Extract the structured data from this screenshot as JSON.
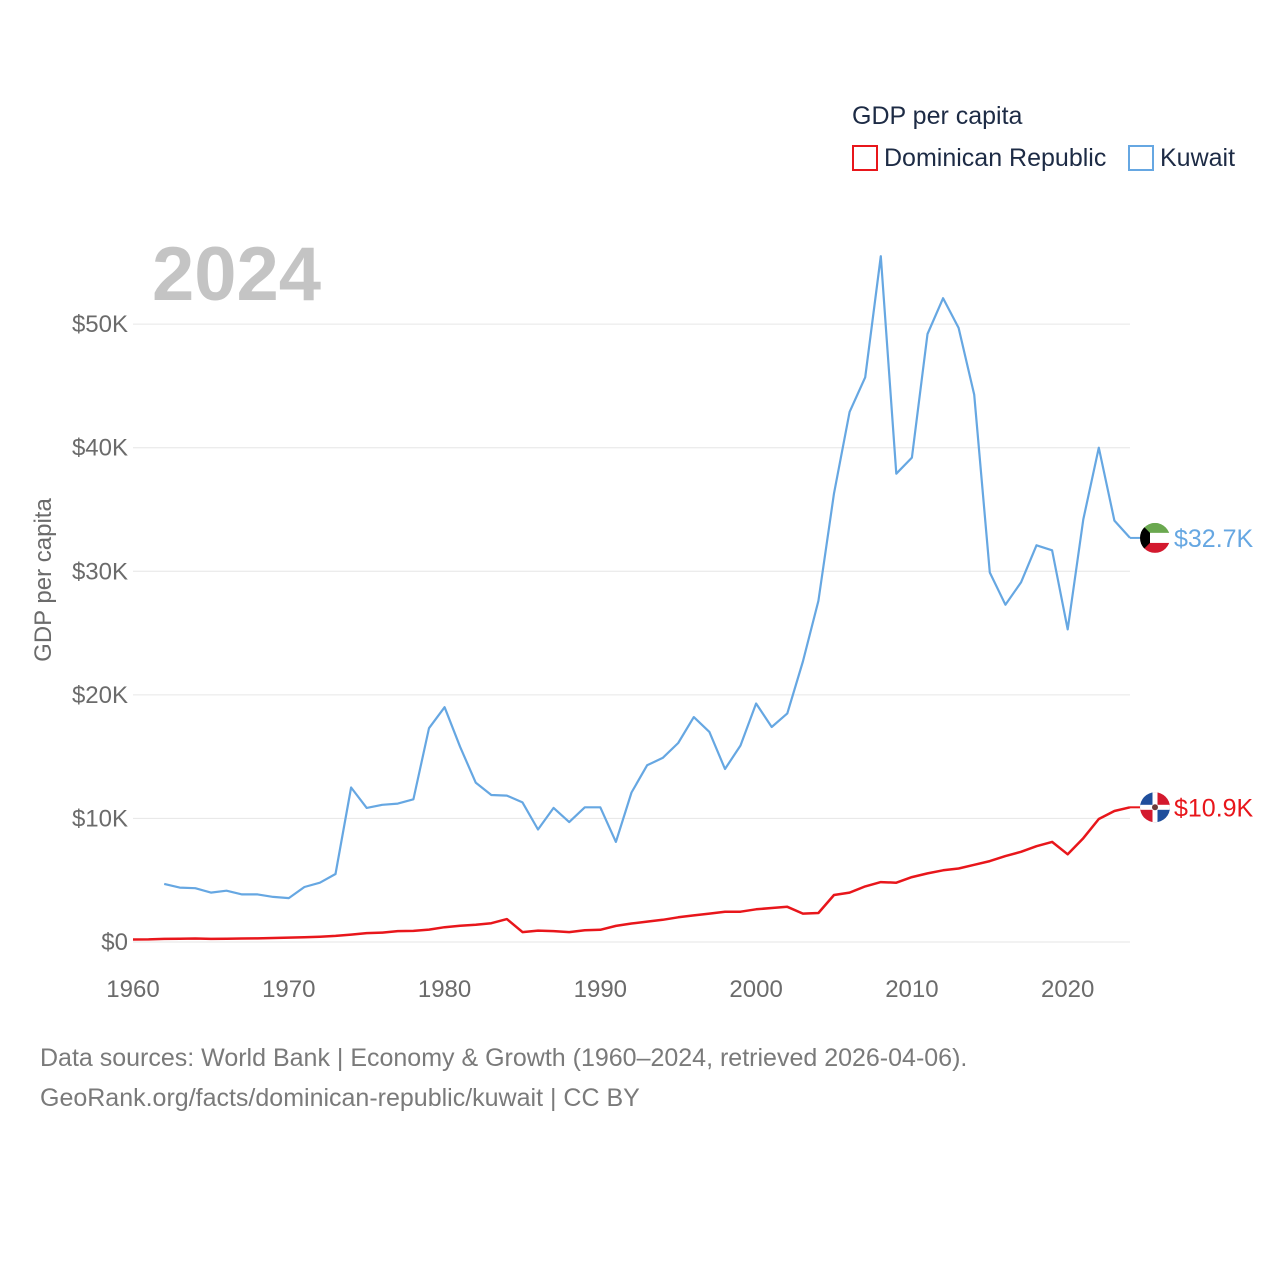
{
  "chart_data": {
    "type": "line",
    "title": "GDP per capita",
    "year_label": "2024",
    "ylabel": "GDP per capita",
    "xlabel": "",
    "xlim": [
      1960,
      2024
    ],
    "ylim": [
      0,
      56000
    ],
    "x_ticks": [
      1960,
      1970,
      1980,
      1990,
      2000,
      2010,
      2020
    ],
    "y_ticks": [
      {
        "value": 0,
        "label": "$0"
      },
      {
        "value": 10000,
        "label": "$10K"
      },
      {
        "value": 20000,
        "label": "$20K"
      },
      {
        "value": 30000,
        "label": "$30K"
      },
      {
        "value": 40000,
        "label": "$40K"
      },
      {
        "value": 50000,
        "label": "$50K"
      }
    ],
    "legend": {
      "title": "GDP per capita",
      "position": "top-right"
    },
    "series": [
      {
        "name": "Dominican Republic",
        "color": "#e8161b",
        "end_label": "$10.9K",
        "flag": "dominican-republic-flag",
        "start_year": 1960,
        "values": [
          200,
          210,
          250,
          270,
          280,
          250,
          260,
          280,
          290,
          320,
          360,
          380,
          430,
          490,
          600,
          720,
          760,
          880,
          900,
          1000,
          1200,
          1320,
          1400,
          1520,
          1850,
          800,
          920,
          880,
          800,
          950,
          990,
          1300,
          1500,
          1650,
          1800,
          2000,
          2150,
          2300,
          2450,
          2450,
          2650,
          2750,
          2850,
          2300,
          2350,
          3800,
          4000,
          4500,
          4850,
          4800,
          5250,
          5550,
          5800,
          5950,
          6250,
          6550,
          6950,
          7300,
          7750,
          8100,
          7100,
          8400,
          9950,
          10600,
          10900
        ]
      },
      {
        "name": "Kuwait",
        "color": "#66a7e2",
        "end_label": "$32.7K",
        "flag": "kuwait-flag",
        "start_year": 1962,
        "values": [
          4700,
          4400,
          4350,
          4000,
          4150,
          3850,
          3850,
          3650,
          3550,
          4450,
          4800,
          5500,
          12500,
          10850,
          11100,
          11200,
          11550,
          17300,
          19000,
          15800,
          12900,
          11900,
          11850,
          11300,
          9100,
          10850,
          9700,
          10900,
          10900,
          8100,
          12100,
          14300,
          14900,
          16100,
          18200,
          17000,
          14000,
          15900,
          19300,
          17400,
          18500,
          22700,
          27600,
          36300,
          42900,
          45700,
          55500,
          37900,
          39200,
          49200,
          52100,
          49700,
          44300,
          29900,
          27300,
          29100,
          32100,
          31700,
          25300,
          34200,
          40000,
          34100,
          32700
        ]
      }
    ],
    "footer": {
      "line1": "Data sources: World Bank | Economy & Growth (1960–2024, retrieved 2026-04-06).",
      "line2": "GeoRank.org/facts/dominican-republic/kuwait | CC BY"
    }
  }
}
